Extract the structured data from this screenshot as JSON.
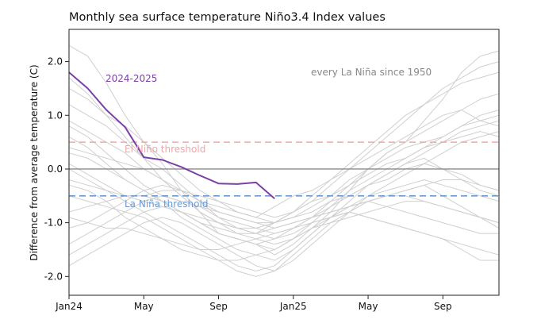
{
  "chart_data": {
    "type": "line",
    "title": "Monthly sea surface temperature Niño3.4 Index values",
    "xlabel": "",
    "ylabel": "Difference from average temperature (C)",
    "ylim": [
      -2.35,
      2.6
    ],
    "xlim": [
      0,
      23
    ],
    "x_tick_values": [
      0,
      4,
      8,
      12,
      16,
      20
    ],
    "x_tick_labels": [
      "Jan24",
      "May",
      "Sep",
      "Jan25",
      "May",
      "Sep"
    ],
    "y_ticks": [
      -2.0,
      -1.0,
      0.0,
      1.0,
      2.0
    ],
    "y_tick_labels": [
      "-2.0",
      "-1.0",
      "0.0",
      "1.0",
      "2.0"
    ],
    "grid": false,
    "reference_lines": [
      {
        "y": 0.5,
        "label": "El Niño threshold",
        "color": "#f2a6a6",
        "style": "dashed"
      },
      {
        "y": -0.5,
        "label": "La Niña threshold",
        "color": "#6b9bd1",
        "style": "dashed"
      },
      {
        "y": 0.0,
        "label": "",
        "color": "#8a8a8a",
        "style": "solid"
      }
    ],
    "annotations": [
      {
        "text": "2024-2025",
        "color": "#7b3fa6"
      },
      {
        "text": "every La Niña since 1950",
        "color": "#888888"
      }
    ],
    "highlight_series": {
      "name": "2024-2025",
      "color": "#7b3fa6",
      "x": [
        0,
        1,
        2,
        3,
        4,
        5,
        6,
        7,
        8,
        9,
        10,
        11
      ],
      "y": [
        1.8,
        1.5,
        1.1,
        0.78,
        0.22,
        0.17,
        0.04,
        -0.12,
        -0.27,
        -0.28,
        -0.25,
        -0.55
      ]
    },
    "background_series": [
      {
        "y": [
          2.3,
          2.1,
          1.6,
          1.0,
          0.5,
          0.1,
          -0.4,
          -0.8,
          -1.2,
          -1.3,
          -1.4,
          -1.6,
          -1.4,
          -1.1,
          -0.8,
          -0.4,
          0.0,
          0.3,
          0.5,
          0.9,
          1.3,
          1.8,
          2.1,
          2.2
        ]
      },
      {
        "y": [
          1.7,
          1.4,
          1.0,
          0.6,
          0.2,
          -0.2,
          -0.5,
          -0.8,
          -1.0,
          -1.1,
          -1.2,
          -1.0,
          -0.8,
          -0.6,
          -0.3,
          0.0,
          0.3,
          0.6,
          0.9,
          1.2,
          1.4,
          1.6,
          1.7,
          1.8
        ]
      },
      {
        "y": [
          1.5,
          1.3,
          1.0,
          0.8,
          0.5,
          0.2,
          -0.1,
          -0.4,
          -0.6,
          -0.8,
          -0.9,
          -0.7,
          -0.5,
          -0.4,
          -0.2,
          0.0,
          0.2,
          0.4,
          0.6,
          0.8,
          1.0,
          1.1,
          0.9,
          0.8
        ]
      },
      {
        "y": [
          1.2,
          1.0,
          0.8,
          0.5,
          0.2,
          0.0,
          -0.3,
          -0.6,
          -0.9,
          -1.1,
          -1.2,
          -1.3,
          -1.1,
          -0.9,
          -0.6,
          -0.3,
          0.0,
          0.2,
          0.4,
          0.5,
          0.6,
          0.8,
          0.9,
          1.0
        ]
      },
      {
        "y": [
          0.9,
          0.7,
          0.5,
          0.3,
          0.0,
          -0.2,
          -0.4,
          -0.6,
          -0.7,
          -0.8,
          -0.9,
          -1.0,
          -0.9,
          -0.7,
          -0.5,
          -0.2,
          0.0,
          0.3,
          0.5,
          0.7,
          0.9,
          1.1,
          1.3,
          1.4
        ]
      },
      {
        "y": [
          0.6,
          0.4,
          0.1,
          -0.2,
          -0.4,
          -0.6,
          -0.8,
          -1.0,
          -1.2,
          -1.3,
          -1.4,
          -1.5,
          -1.3,
          -1.0,
          -0.7,
          -0.4,
          -0.2,
          0.0,
          0.2,
          0.4,
          0.5,
          0.6,
          0.7,
          0.6
        ]
      },
      {
        "y": [
          0.3,
          0.2,
          0.0,
          -0.2,
          -0.4,
          -0.6,
          -0.9,
          -1.1,
          -1.3,
          -1.5,
          -1.6,
          -1.7,
          -1.5,
          -1.2,
          -0.9,
          -0.6,
          -0.3,
          -0.1,
          0.1,
          0.2,
          0.0,
          -0.2,
          -0.4,
          -0.5
        ]
      },
      {
        "y": [
          0.1,
          -0.1,
          -0.3,
          -0.5,
          -0.6,
          -0.7,
          -0.8,
          -1.0,
          -1.1,
          -1.2,
          -1.2,
          -1.1,
          -1.0,
          -0.9,
          -0.8,
          -0.7,
          -0.6,
          -0.5,
          -0.5,
          -0.6,
          -0.7,
          -0.8,
          -0.9,
          -1.0
        ]
      },
      {
        "y": [
          -0.2,
          -0.3,
          -0.4,
          -0.6,
          -0.8,
          -1.0,
          -1.2,
          -1.4,
          -1.6,
          -1.8,
          -1.9,
          -1.8,
          -1.5,
          -1.2,
          -0.9,
          -0.7,
          -0.5,
          -0.4,
          -0.3,
          -0.2,
          -0.3,
          -0.4,
          -0.5,
          -0.6
        ]
      },
      {
        "y": [
          -0.5,
          -0.6,
          -0.7,
          -0.8,
          -0.9,
          -1.1,
          -1.3,
          -1.5,
          -1.7,
          -1.9,
          -2.0,
          -1.9,
          -1.6,
          -1.3,
          -1.0,
          -0.8,
          -0.6,
          -0.5,
          -0.4,
          -0.3,
          -0.5,
          -0.7,
          -0.9,
          -1.1
        ]
      },
      {
        "y": [
          -0.8,
          -0.7,
          -0.6,
          -0.5,
          -0.5,
          -0.6,
          -0.8,
          -1.0,
          -1.2,
          -1.3,
          -1.4,
          -1.3,
          -1.2,
          -1.0,
          -0.9,
          -0.8,
          -0.9,
          -1.0,
          -1.1,
          -1.2,
          -1.3,
          -1.4,
          -1.5,
          -1.6
        ]
      },
      {
        "y": [
          -1.1,
          -1.0,
          -0.8,
          -0.6,
          -0.4,
          -0.3,
          -0.4,
          -0.6,
          -0.8,
          -0.9,
          -1.0,
          -1.1,
          -1.0,
          -0.9,
          -0.8,
          -0.7,
          -0.6,
          -0.5,
          -0.4,
          -0.3,
          -0.2,
          -0.2,
          -0.3,
          -0.4
        ]
      },
      {
        "y": [
          -1.4,
          -1.2,
          -1.0,
          -0.8,
          -0.6,
          -0.5,
          -0.6,
          -0.7,
          -0.9,
          -1.0,
          -1.1,
          -1.2,
          -1.1,
          -0.9,
          -0.7,
          -0.5,
          -0.3,
          -0.1,
          0.1,
          0.3,
          0.5,
          0.7,
          0.8,
          0.9
        ]
      },
      {
        "y": [
          -1.6,
          -1.4,
          -1.2,
          -1.0,
          -0.8,
          -0.7,
          -0.8,
          -0.9,
          -1.0,
          -1.2,
          -1.3,
          -1.4,
          -1.3,
          -1.1,
          -1.0,
          -0.9,
          -0.8,
          -0.7,
          -0.6,
          -0.6,
          -0.7,
          -0.8,
          -0.9,
          -1.0
        ]
      },
      {
        "y": [
          -1.8,
          -1.6,
          -1.4,
          -1.2,
          -1.0,
          -0.9,
          -1.0,
          -1.2,
          -1.4,
          -1.6,
          -1.8,
          -1.9,
          -1.7,
          -1.4,
          -1.1,
          -0.8,
          -0.5,
          -0.3,
          -0.1,
          0.1,
          0.3,
          0.5,
          0.6,
          0.7
        ]
      },
      {
        "y": [
          0.0,
          -0.2,
          -0.4,
          -0.5,
          -0.5,
          -0.4,
          -0.4,
          -0.5,
          -0.6,
          -0.7,
          -0.8,
          -0.9,
          -0.8,
          -0.6,
          -0.5,
          -0.3,
          -0.1,
          0.1,
          0.2,
          0.4,
          0.6,
          0.8,
          1.0,
          1.1
        ]
      },
      {
        "y": [
          0.8,
          0.6,
          0.3,
          0.0,
          -0.3,
          -0.5,
          -0.6,
          -0.7,
          -0.8,
          -0.9,
          -1.0,
          -1.0,
          -0.9,
          -0.8,
          -0.6,
          -0.5,
          -0.3,
          -0.2,
          0.0,
          0.1,
          0.0,
          -0.1,
          -0.3,
          -0.4
        ]
      },
      {
        "y": [
          -0.9,
          -1.0,
          -1.1,
          -1.1,
          -1.2,
          -1.3,
          -1.4,
          -1.5,
          -1.5,
          -1.4,
          -1.3,
          -1.2,
          -1.1,
          -1.0,
          -0.9,
          -0.8,
          -0.9,
          -1.0,
          -1.1,
          -1.2,
          -1.3,
          -1.5,
          -1.7,
          -1.7
        ]
      },
      {
        "y": [
          0.4,
          0.3,
          0.2,
          0.1,
          0.0,
          -0.2,
          -0.5,
          -0.8,
          -1.0,
          -1.1,
          -1.1,
          -1.0,
          -0.8,
          -0.5,
          -0.2,
          0.1,
          0.4,
          0.7,
          1.0,
          1.2,
          1.5,
          1.7,
          1.9,
          2.0
        ]
      },
      {
        "y": [
          -0.3,
          -0.4,
          -0.6,
          -0.9,
          -1.1,
          -1.3,
          -1.5,
          -1.6,
          -1.7,
          -1.7,
          -1.6,
          -1.5,
          -1.3,
          -1.1,
          -0.9,
          -0.7,
          -0.6,
          -0.7,
          -0.8,
          -0.9,
          -1.0,
          -1.1,
          -1.2,
          -1.2
        ]
      }
    ]
  }
}
